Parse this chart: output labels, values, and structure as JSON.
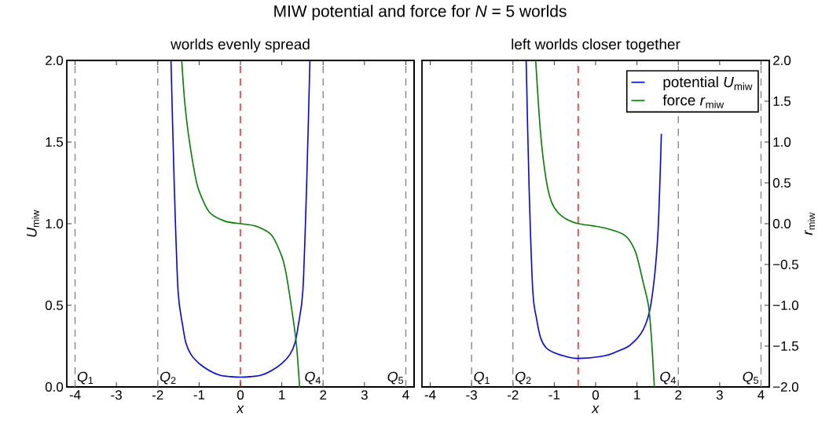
{
  "chart_data": [
    {
      "type": "line",
      "title": "MIW potential and force for *N* = 5 worlds",
      "subtitle": "worlds evenly spread",
      "xlabel": "*x*",
      "ylabel": "*U*$_{miw}$",
      "xlim": [
        -4.2,
        4.2
      ],
      "ylim": [
        0,
        2
      ],
      "y2lim": [
        -2,
        2
      ],
      "xticks": [
        -4,
        -3,
        -2,
        -1,
        0,
        1,
        2,
        3,
        4
      ],
      "yticks": [
        {
          "value": 0,
          "label": "0.0"
        },
        {
          "value": 0.5,
          "label": "0.5"
        },
        {
          "value": 1,
          "label": "1.0"
        },
        {
          "value": 1.5,
          "label": "1.5"
        },
        {
          "value": 2,
          "label": "2.0"
        }
      ],
      "tick_labels": [
        "x",
        "y"
      ],
      "marker": "none",
      "line_style": "solid",
      "grid": false,
      "legend": false,
      "series": [
        {
          "color": "#0000ff",
          "x": [
            -1.68,
            -1.6,
            -1.51,
            -1.4,
            -1.32,
            -1.2,
            -1.0,
            -0.75,
            -0.5,
            -0.25,
            0,
            0.25,
            0.5,
            0.75,
            1.0,
            1.2,
            1.32,
            1.4,
            1.51,
            1.6,
            1.68
          ],
          "values": [
            2.0,
            1.23,
            0.59,
            0.38,
            0.27,
            0.2,
            0.144,
            0.1,
            0.072,
            0.063,
            0.06,
            0.063,
            0.072,
            0.1,
            0.144,
            0.2,
            0.27,
            0.38,
            0.59,
            1.23,
            2.0
          ]
        },
        {
          "color": "#008000",
          "axis": "y2",
          "x": [
            -1.42,
            -1.35,
            -1.26,
            -1.1,
            -1.0,
            -0.75,
            -0.37,
            0,
            0.37,
            0.75,
            1.0,
            1.1,
            1.22,
            1.35,
            1.43
          ],
          "values": [
            2.0,
            1.5,
            1.1,
            0.6,
            0.4,
            0.14,
            0.03,
            0,
            -0.03,
            -0.14,
            -0.4,
            -0.6,
            -0.98,
            -1.46,
            -2.0
          ]
        }
      ],
      "ref_lines": [
        {
          "axis": "x",
          "value": -4,
          "label": "*Q*$_{1}$",
          "color": "#808080",
          "line_style": "dashed"
        },
        {
          "axis": "x",
          "value": -2,
          "label": "*Q*$_{2}$",
          "color": "#808080",
          "line_style": "dashed"
        },
        {
          "axis": "x",
          "value": 0,
          "color": "#ff0000",
          "line_style": "dashed"
        },
        {
          "axis": "x",
          "value": 2,
          "label": "*Q*$_{4}$",
          "color": "#808080",
          "line_style": "dashed"
        },
        {
          "axis": "x",
          "value": 4,
          "label": "*Q*$_{5}$",
          "color": "#808080",
          "line_style": "dashed"
        }
      ]
    },
    {
      "type": "line",
      "subtitle": "left worlds closer together",
      "xlabel": "*x*",
      "y2label": "*r*$_{miw}$",
      "xlim": [
        -4.2,
        4.2
      ],
      "ylim": [
        0,
        2
      ],
      "y2lim": [
        -2,
        2
      ],
      "xticks": [
        -4,
        -3,
        -2,
        -1,
        0,
        1,
        2,
        3,
        4
      ],
      "y2ticks": [
        {
          "value": -2,
          "label": "−2.0"
        },
        {
          "value": -1.5,
          "label": "−1.5"
        },
        {
          "value": -1,
          "label": "−1.0"
        },
        {
          "value": -0.5,
          "label": "−0.5"
        },
        {
          "value": 0,
          "label": "0.0"
        },
        {
          "value": 0.5,
          "label": "0.5"
        },
        {
          "value": 1,
          "label": "1.0"
        },
        {
          "value": 1.5,
          "label": "1.5"
        },
        {
          "value": 2,
          "label": "2.0"
        }
      ],
      "tick_labels": [
        "x",
        "y2"
      ],
      "marker": "none",
      "line_style": "solid",
      "grid": false,
      "legend": "top right",
      "series": [
        {
          "name": "potential *U*$_{miw}$",
          "color": "#0000ff",
          "x": [
            -1.68,
            -1.61,
            -1.52,
            -1.43,
            -1.33,
            -1.2,
            -1.01,
            -0.7,
            -0.42,
            0.2,
            0.5,
            0.83,
            1.15,
            1.34,
            1.5,
            1.59
          ],
          "values": [
            2.0,
            1.23,
            0.59,
            0.42,
            0.3,
            0.24,
            0.21,
            0.185,
            0.175,
            0.19,
            0.215,
            0.255,
            0.35,
            0.51,
            0.91,
            1.55
          ]
        },
        {
          "name": "force *r*$_{miw}$",
          "color": "#008000",
          "axis": "y2",
          "x": [
            -1.45,
            -1.33,
            -1.2,
            -1.07,
            -0.9,
            -0.69,
            -0.42,
            0.2,
            0.7,
            0.96,
            1.15,
            1.28,
            1.35,
            1.42
          ],
          "values": [
            2.0,
            1.1,
            0.55,
            0.27,
            0.13,
            0.05,
            0,
            -0.05,
            -0.14,
            -0.34,
            -0.72,
            -1.01,
            -1.4,
            -2.0
          ]
        }
      ],
      "ref_lines": [
        {
          "axis": "x",
          "value": -3,
          "label": "*Q*$_{1}$",
          "color": "#808080",
          "line_style": "dashed"
        },
        {
          "axis": "x",
          "value": -2,
          "label": "*Q*$_{2}$",
          "color": "#808080",
          "line_style": "dashed"
        },
        {
          "axis": "x",
          "value": -0.42,
          "color": "#ff0000",
          "line_style": "dashed"
        },
        {
          "axis": "x",
          "value": 2,
          "label": "*Q*$_{4}$",
          "color": "#808080",
          "line_style": "dashed"
        },
        {
          "axis": "x",
          "value": 4,
          "label": "*Q*$_{5}$",
          "color": "#808080",
          "line_style": "dashed"
        }
      ]
    }
  ]
}
